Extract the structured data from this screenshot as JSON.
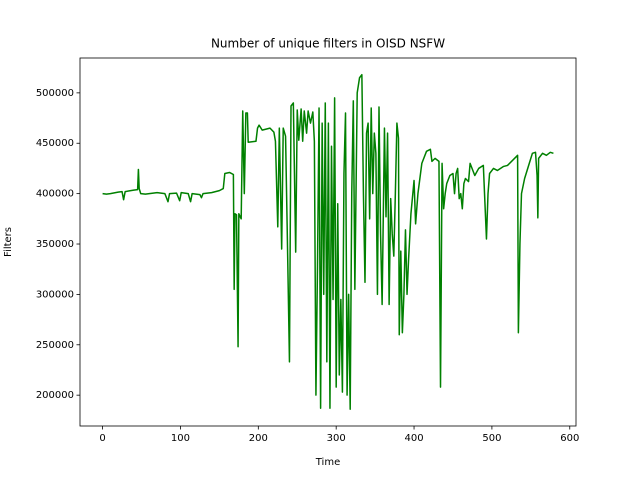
{
  "chart_data": {
    "type": "line",
    "title": "Number of unique filters in OISD NSFW",
    "x_label": "Time",
    "y_label": "Filters",
    "color": "#008000",
    "xlim": [
      -29,
      608
    ],
    "ylim": [
      169400,
      534600
    ],
    "xticks": [
      0,
      100,
      200,
      300,
      400,
      500,
      600
    ],
    "yticks": [
      200000,
      250000,
      300000,
      350000,
      400000,
      450000,
      500000
    ],
    "x": [
      0,
      5,
      10,
      20,
      25,
      27,
      29,
      40,
      45,
      46,
      47,
      49,
      55,
      60,
      70,
      80,
      84,
      86,
      95,
      99,
      101,
      110,
      113,
      115,
      125,
      127,
      129,
      140,
      150,
      155,
      157,
      163,
      168,
      169,
      170,
      172,
      174,
      175,
      178,
      180,
      182,
      184,
      186,
      187,
      197,
      199,
      201,
      205,
      215,
      220,
      222,
      225,
      227,
      230,
      232,
      235,
      237,
      240,
      242,
      245,
      248,
      250,
      252,
      255,
      257,
      259,
      262,
      264,
      267,
      270,
      272,
      274,
      276,
      278,
      280,
      282,
      284,
      286,
      288,
      290,
      292,
      294,
      296,
      298,
      300,
      302,
      304,
      306,
      308,
      310,
      312,
      314,
      316,
      318,
      320,
      322,
      324,
      327,
      330,
      333,
      335,
      337,
      339,
      341,
      343,
      345,
      347,
      349,
      351,
      353,
      355,
      357,
      359,
      362,
      364,
      366,
      368,
      370,
      372,
      374,
      376,
      378,
      380,
      381,
      383,
      385,
      387,
      389,
      391,
      393,
      396,
      400,
      402,
      405,
      410,
      416,
      421,
      423,
      427,
      432,
      434,
      436,
      438,
      440,
      442,
      446,
      450,
      452,
      454,
      456,
      458,
      460,
      462,
      464,
      466,
      470,
      472,
      478,
      483,
      489,
      493,
      495,
      497,
      502,
      507,
      515,
      520,
      533,
      534,
      536,
      538,
      542,
      548,
      552,
      556,
      558,
      559,
      560,
      565,
      570,
      575,
      579
    ],
    "values": [
      400000,
      399500,
      400000,
      401500,
      402000,
      394000,
      402000,
      403500,
      404000,
      424000,
      405000,
      400000,
      399500,
      400000,
      401000,
      400000,
      392000,
      400000,
      400500,
      393000,
      401000,
      400000,
      392000,
      400000,
      399000,
      396000,
      400000,
      401000,
      403000,
      405000,
      420000,
      421000,
      419000,
      305000,
      380000,
      379000,
      248000,
      380000,
      375000,
      482000,
      400000,
      480000,
      480000,
      451000,
      452000,
      465000,
      468000,
      463000,
      465000,
      461000,
      452000,
      367000,
      465000,
      345000,
      465000,
      457000,
      370000,
      233000,
      487000,
      490000,
      342000,
      483000,
      453000,
      484000,
      452000,
      482000,
      460000,
      482000,
      470000,
      481000,
      452000,
      200000,
      328000,
      485000,
      187000,
      470000,
      300000,
      490000,
      233000,
      470000,
      187000,
      447000,
      295000,
      495000,
      208000,
      390000,
      220000,
      295000,
      203000,
      420000,
      480000,
      200000,
      300000,
      186000,
      400000,
      492000,
      305000,
      500000,
      515000,
      518000,
      400000,
      312000,
      460000,
      470000,
      375000,
      485000,
      400000,
      460000,
      440000,
      300000,
      486000,
      360000,
      290000,
      465000,
      377000,
      460000,
      290000,
      395000,
      360000,
      338000,
      400000,
      470000,
      455000,
      260000,
      343000,
      262000,
      300000,
      364000,
      300000,
      335000,
      380000,
      413000,
      370000,
      400000,
      430000,
      442000,
      444000,
      432000,
      435000,
      432000,
      208000,
      430000,
      385000,
      400000,
      410000,
      418000,
      420000,
      400000,
      420000,
      425000,
      395000,
      400000,
      385000,
      410000,
      415000,
      412000,
      430000,
      418000,
      425000,
      428000,
      355000,
      400000,
      420000,
      425000,
      423000,
      427000,
      428000,
      438000,
      262000,
      350000,
      400000,
      415000,
      430000,
      440000,
      441000,
      418000,
      376000,
      435000,
      440000,
      438000,
      441000,
      440000
    ]
  }
}
